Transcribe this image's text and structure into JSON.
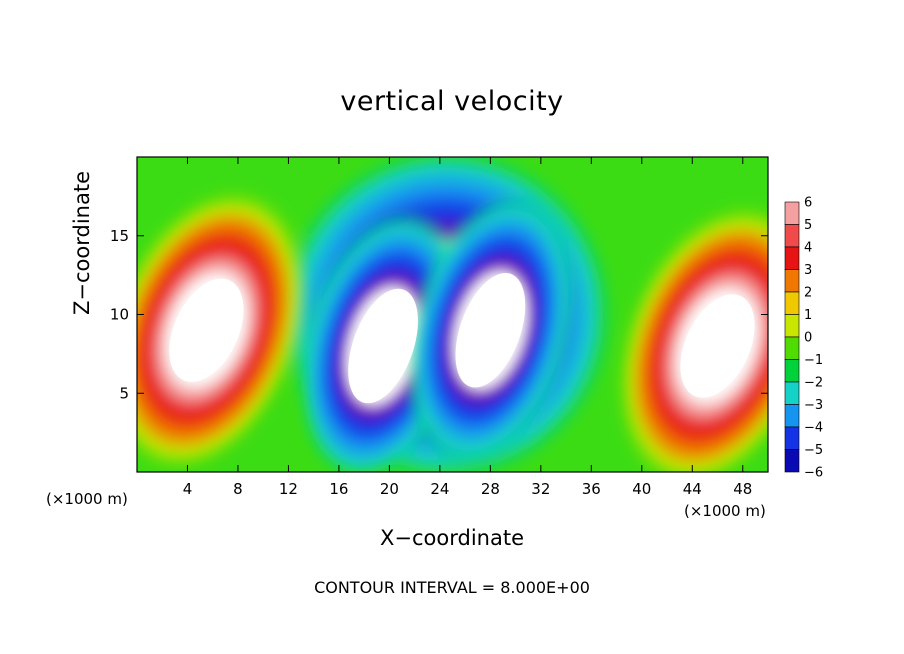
{
  "chart_data": {
    "type": "contour",
    "title": "vertical velocity",
    "xlabel": "X−coordinate",
    "ylabel": "Z−coordinate",
    "x_unit_label": "(×1000 m)",
    "y_unit_label": "(×1000 m)",
    "footer": "CONTOUR INTERVAL = 8.000E+00",
    "xlim": [
      0,
      50
    ],
    "ylim": [
      0,
      20
    ],
    "xticks": [
      4,
      8,
      12,
      16,
      20,
      24,
      28,
      32,
      36,
      40,
      44,
      48
    ],
    "xtick_labels": [
      "4",
      "8",
      "12",
      "16",
      "20",
      "24",
      "28",
      "32",
      "36",
      "40",
      "44",
      "48"
    ],
    "yticks": [
      5,
      10,
      15
    ],
    "ytick_labels": [
      "5",
      "10",
      "15"
    ],
    "colorbar": {
      "levels": [
        6,
        5,
        4,
        3,
        2,
        1,
        0,
        -1,
        -2,
        -3,
        -4,
        -5,
        -6
      ],
      "labels": [
        "6",
        "5",
        "4",
        "3",
        "2",
        "1",
        "0",
        "−1",
        "−2",
        "−3",
        "−4",
        "−5",
        "−6"
      ],
      "colors": [
        "#f5a0a0",
        "#f04a4a",
        "#e61414",
        "#f07800",
        "#f0c800",
        "#c8e600",
        "#50dc00",
        "#00d23c",
        "#14d2c8",
        "#1496f0",
        "#1432e6",
        "#0a0ab4",
        "#6e14b4"
      ]
    },
    "features": [
      {
        "label": "updraft",
        "cx": 5.5,
        "cy": 9,
        "sign": "positive"
      },
      {
        "label": "downdraft",
        "cx": 19.5,
        "cy": 8,
        "sign": "negative"
      },
      {
        "label": "downdraft",
        "cx": 28,
        "cy": 9,
        "sign": "negative"
      },
      {
        "label": "updraft",
        "cx": 46,
        "cy": 8,
        "sign": "positive"
      }
    ]
  }
}
